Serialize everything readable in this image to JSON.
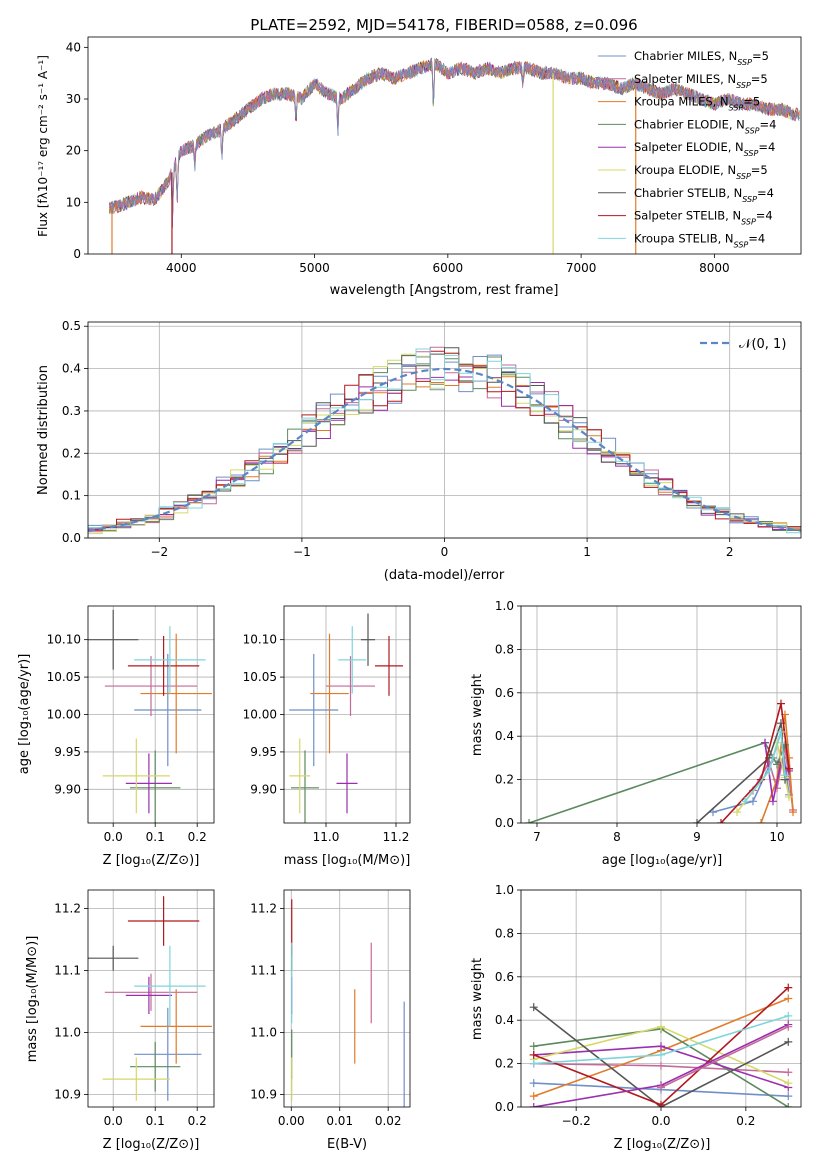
{
  "colors": [
    "#6f8fc8",
    "#c46a9a",
    "#e07b2a",
    "#5b8a5e",
    "#9b2fae",
    "#d4d96a",
    "#555555",
    "#b0191e",
    "#7fd4dc"
  ],
  "chart_data": [
    {
      "id": "spectrum",
      "type": "line",
      "title": "PLATE=2592, MJD=54178, FIBERID=0588, z=0.096",
      "xlabel": "wavelength [Angstrom, rest frame]",
      "ylabel": "Flux [fλ10⁻¹⁷ erg cm⁻² s⁻¹ A⁻¹]",
      "xlim": [
        3300,
        8650
      ],
      "ylim": [
        0,
        42
      ],
      "xticks": [
        4000,
        5000,
        6000,
        7000,
        8000
      ],
      "yticks": [
        0,
        10,
        20,
        30,
        40
      ],
      "grid": false,
      "legend_position": "upper-right",
      "legend": [
        "Chabrier MILES, N_SSP=5",
        "Salpeter MILES, N_SSP=5",
        "Kroupa MILES, N_SSP=5",
        "Chabrier ELODIE, N_SSP=4",
        "Salpeter ELODIE, N_SSP=4",
        "Kroupa ELODIE, N_SSP=5",
        "Chabrier STELIB, N_SSP=4",
        "Salpeter STELIB, N_SSP=4",
        "Kroupa STELIB, N_SSP=4"
      ],
      "x": [
        3500,
        3600,
        3700,
        3800,
        3900,
        4000,
        4100,
        4200,
        4300,
        4400,
        4500,
        4600,
        4700,
        4800,
        4900,
        5000,
        5100,
        5200,
        5300,
        5400,
        5500,
        5600,
        5700,
        5800,
        5900,
        6000,
        6100,
        6200,
        6300,
        6400,
        6500,
        6600,
        6700,
        6800,
        6900,
        7000,
        7100,
        7200,
        7300,
        7400,
        7500,
        7600,
        7700,
        7800,
        7900,
        8000,
        8100,
        8200,
        8300,
        8400,
        8500,
        8600
      ],
      "y": [
        9,
        10,
        11,
        10.5,
        14,
        20,
        21,
        23,
        24,
        26,
        28,
        30,
        31,
        31,
        30,
        33,
        31,
        30,
        32,
        34,
        35,
        34,
        35,
        36,
        37,
        35,
        36,
        35,
        36,
        35,
        36,
        36,
        35,
        35,
        34,
        34,
        33,
        33,
        32,
        33,
        32,
        31,
        32,
        31,
        30,
        29,
        30,
        29,
        29,
        28,
        28,
        27
      ],
      "vertical_dropouts": [
        3480,
        3930,
        6790,
        7410
      ]
    },
    {
      "id": "residuals",
      "type": "histogram",
      "xlabel": "(data-model)/error",
      "ylabel": "Normed distribution",
      "xlim": [
        -2.5,
        2.5
      ],
      "ylim": [
        0,
        0.51
      ],
      "xticks": [
        -2,
        -1,
        0,
        1,
        2
      ],
      "yticks": [
        0.0,
        0.1,
        0.2,
        0.3,
        0.4,
        0.5
      ],
      "grid": true,
      "legend": [
        "𝒩(0, 1)"
      ],
      "legend_position": "upper-right",
      "bin_width": 0.1
    },
    {
      "id": "age-vs-z",
      "type": "errorbar",
      "xlabel": "Z [log₁₀(Z/Z⊙)]",
      "ylabel": "age  [log₁₀(age/yr)]",
      "xlim": [
        -0.06,
        0.24
      ],
      "ylim": [
        9.855,
        10.145
      ],
      "xticks": [
        0.0,
        0.1,
        0.2
      ],
      "yticks": [
        9.9,
        9.95,
        10.0,
        10.05,
        10.1
      ],
      "grid": true,
      "points": [
        {
          "x": 0.13,
          "y": 10.006,
          "xerr": 0.08,
          "yerr": 0.075
        },
        {
          "x": 0.09,
          "y": 10.038,
          "xerr": 0.11,
          "yerr": 0.04
        },
        {
          "x": 0.15,
          "y": 10.028,
          "xerr": 0.085,
          "yerr": 0.08
        },
        {
          "x": 0.1,
          "y": 9.902,
          "xerr": 0.06,
          "yerr": 0.05
        },
        {
          "x": 0.085,
          "y": 9.908,
          "xerr": 0.055,
          "yerr": 0.04
        },
        {
          "x": 0.055,
          "y": 9.918,
          "xerr": 0.08,
          "yerr": 0.05
        },
        {
          "x": 0.0,
          "y": 10.1,
          "xerr": 0.06,
          "yerr": 0.04
        },
        {
          "x": 0.12,
          "y": 10.065,
          "xerr": 0.085,
          "yerr": 0.04
        },
        {
          "x": 0.135,
          "y": 10.073,
          "xerr": 0.085,
          "yerr": 0.045
        }
      ]
    },
    {
      "id": "age-vs-mass",
      "type": "errorbar",
      "xlabel": "mass [log₁₀(M/M⊙)]",
      "ylabel": "",
      "xlim": [
        10.88,
        11.24
      ],
      "ylim": [
        9.855,
        10.145
      ],
      "xticks": [
        11.0,
        11.2
      ],
      "yticks": [
        9.9,
        9.95,
        10.0,
        10.05,
        10.1
      ],
      "grid": true,
      "points": [
        {
          "x": 10.965,
          "y": 10.006,
          "xerr": 0.07,
          "yerr": 0.075
        },
        {
          "x": 11.07,
          "y": 10.038,
          "xerr": 0.07,
          "yerr": 0.04
        },
        {
          "x": 11.01,
          "y": 10.028,
          "xerr": 0.055,
          "yerr": 0.08
        },
        {
          "x": 10.94,
          "y": 9.902,
          "xerr": 0.04,
          "yerr": 0.05
        },
        {
          "x": 11.06,
          "y": 9.908,
          "xerr": 0.03,
          "yerr": 0.04
        },
        {
          "x": 10.925,
          "y": 9.918,
          "xerr": 0.03,
          "yerr": 0.05
        },
        {
          "x": 11.12,
          "y": 10.1,
          "xerr": 0.02,
          "yerr": 0.035
        },
        {
          "x": 11.18,
          "y": 10.065,
          "xerr": 0.04,
          "yerr": 0.04
        },
        {
          "x": 11.075,
          "y": 10.073,
          "xerr": 0.04,
          "yerr": 0.045
        }
      ]
    },
    {
      "id": "mass-weight-vs-age",
      "type": "line",
      "xlabel": "age  [log₁₀(age/yr)]",
      "ylabel": "mass weight",
      "xlim": [
        6.8,
        10.3
      ],
      "ylim": [
        0.0,
        1.0
      ],
      "xticks": [
        7,
        8,
        9,
        10
      ],
      "yticks": [
        0.0,
        0.2,
        0.4,
        0.6,
        0.8,
        1.0
      ],
      "grid": true,
      "series": [
        {
          "x": [
            9.2,
            9.7,
            9.95,
            10.05,
            10.15
          ],
          "y": [
            0.05,
            0.1,
            0.3,
            0.42,
            0.13
          ]
        },
        {
          "x": [
            9.7,
            9.9,
            10.0,
            10.1,
            10.2
          ],
          "y": [
            0.15,
            0.28,
            0.16,
            0.35,
            0.06
          ]
        },
        {
          "x": [
            9.8,
            10.0,
            10.1,
            10.15,
            10.2
          ],
          "y": [
            0.0,
            0.2,
            0.5,
            0.3,
            0.05
          ]
        },
        {
          "x": [
            6.9,
            9.85,
            10.0,
            10.1
          ],
          "y": [
            0.0,
            0.37,
            0.27,
            0.36
          ]
        },
        {
          "x": [
            9.85,
            9.95,
            10.05,
            10.15
          ],
          "y": [
            0.37,
            0.1,
            0.28,
            0.24
          ]
        },
        {
          "x": [
            9.5,
            9.9,
            10.0,
            10.1,
            10.15
          ],
          "y": [
            0.05,
            0.24,
            0.37,
            0.21,
            0.12
          ]
        },
        {
          "x": [
            9.0,
            9.9,
            10.05,
            10.1
          ],
          "y": [
            0.0,
            0.3,
            0.46,
            0.2
          ]
        },
        {
          "x": [
            9.3,
            9.8,
            10.05,
            10.15
          ],
          "y": [
            0.0,
            0.2,
            0.55,
            0.25
          ]
        },
        {
          "x": [
            9.6,
            9.9,
            10.05,
            10.1
          ],
          "y": [
            0.1,
            0.24,
            0.42,
            0.22
          ]
        }
      ]
    },
    {
      "id": "mass-vs-z",
      "type": "errorbar",
      "xlabel": "Z [log₁₀(Z/Z⊙)]",
      "ylabel": "mass [log₁₀(M/M⊙)]",
      "xlim": [
        -0.06,
        0.24
      ],
      "ylim": [
        10.88,
        11.23
      ],
      "xticks": [
        0.0,
        0.1,
        0.2
      ],
      "yticks": [
        10.9,
        11.0,
        11.1,
        11.2
      ],
      "grid": true,
      "points": [
        {
          "x": 0.13,
          "y": 10.965,
          "xerr": 0.08,
          "yerr": 0.075
        },
        {
          "x": 0.09,
          "y": 11.065,
          "xerr": 0.11,
          "yerr": 0.03
        },
        {
          "x": 0.15,
          "y": 11.01,
          "xerr": 0.085,
          "yerr": 0.06
        },
        {
          "x": 0.1,
          "y": 10.945,
          "xerr": 0.06,
          "yerr": 0.04
        },
        {
          "x": 0.085,
          "y": 11.06,
          "xerr": 0.055,
          "yerr": 0.03
        },
        {
          "x": 0.055,
          "y": 10.925,
          "xerr": 0.08,
          "yerr": 0.035
        },
        {
          "x": 0.0,
          "y": 11.12,
          "xerr": 0.06,
          "yerr": 0.02
        },
        {
          "x": 0.12,
          "y": 11.18,
          "xerr": 0.085,
          "yerr": 0.04
        },
        {
          "x": 0.135,
          "y": 11.075,
          "xerr": 0.085,
          "yerr": 0.065
        }
      ]
    },
    {
      "id": "ebv",
      "type": "errorbar",
      "xlabel": "E(B-V)",
      "ylabel": "",
      "xlim": [
        -0.0015,
        0.0245
      ],
      "ylim": [
        10.88,
        11.23
      ],
      "xticks": [
        0.0,
        0.01,
        0.02
      ],
      "yticks": [
        10.9,
        11.0,
        11.1,
        11.2
      ],
      "grid": true,
      "points": [
        {
          "x": 0.0233,
          "y": 10.965,
          "xerr": 0,
          "yerr": 0.085
        },
        {
          "x": 0.0165,
          "y": 11.08,
          "xerr": 0,
          "yerr": 0.065
        },
        {
          "x": 0.0131,
          "y": 11.01,
          "xerr": 0,
          "yerr": 0.06
        },
        {
          "x": 0.0001,
          "y": 10.965,
          "xerr": 0,
          "yerr": 0.04
        },
        {
          "x": 0.0001,
          "y": 11.06,
          "xerr": 0,
          "yerr": 0.03
        },
        {
          "x": 0.0001,
          "y": 10.925,
          "xerr": 0,
          "yerr": 0.035
        },
        {
          "x": 0.0001,
          "y": 11.12,
          "xerr": 0,
          "yerr": 0.02
        },
        {
          "x": 0.0001,
          "y": 11.17,
          "xerr": 0,
          "yerr": 0.045
        },
        {
          "x": 0.0001,
          "y": 11.08,
          "xerr": 0,
          "yerr": 0.065
        }
      ]
    },
    {
      "id": "mass-weight-vs-z",
      "type": "line",
      "xlabel": "Z [log₁₀(Z/Z⊙)]",
      "ylabel": "mass weight",
      "xlim": [
        -0.33,
        0.33
      ],
      "ylim": [
        0.0,
        1.0
      ],
      "xticks": [
        -0.2,
        0.0,
        0.2
      ],
      "yticks": [
        0.0,
        0.2,
        0.4,
        0.6,
        0.8,
        1.0
      ],
      "grid": true,
      "series": [
        {
          "x": [
            -0.3,
            0.0,
            0.3
          ],
          "y": [
            0.11,
            0.08,
            0.05
          ]
        },
        {
          "x": [
            -0.3,
            0.0,
            0.3
          ],
          "y": [
            0.2,
            0.19,
            0.16
          ]
        },
        {
          "x": [
            -0.3,
            0.0,
            0.3
          ],
          "y": [
            0.05,
            0.26,
            0.5
          ]
        },
        {
          "x": [
            -0.3,
            0.0,
            0.3
          ],
          "y": [
            0.28,
            0.36,
            0.0
          ]
        },
        {
          "x": [
            -0.3,
            0.0,
            0.3
          ],
          "y": [
            0.24,
            0.28,
            0.09
          ]
        },
        {
          "x": [
            -0.3,
            0.0,
            0.3
          ],
          "y": [
            0.22,
            0.37,
            0.11
          ]
        },
        {
          "x": [
            -0.3,
            0.0,
            0.3
          ],
          "y": [
            0.46,
            0.0,
            0.3
          ]
        },
        {
          "x": [
            -0.3,
            0.0,
            0.3
          ],
          "y": [
            0.24,
            0.01,
            0.55
          ]
        },
        {
          "x": [
            -0.3,
            0.0,
            0.3
          ],
          "y": [
            0.2,
            0.24,
            0.42
          ]
        }
      ],
      "extra_series": [
        {
          "x": [
            -0.3,
            0.0,
            0.3
          ],
          "y": [
            0.0,
            0.1,
            0.38
          ]
        },
        {
          "x": [
            0.0,
            0.3
          ],
          "y": [
            0.09,
            0.37
          ]
        }
      ]
    }
  ]
}
